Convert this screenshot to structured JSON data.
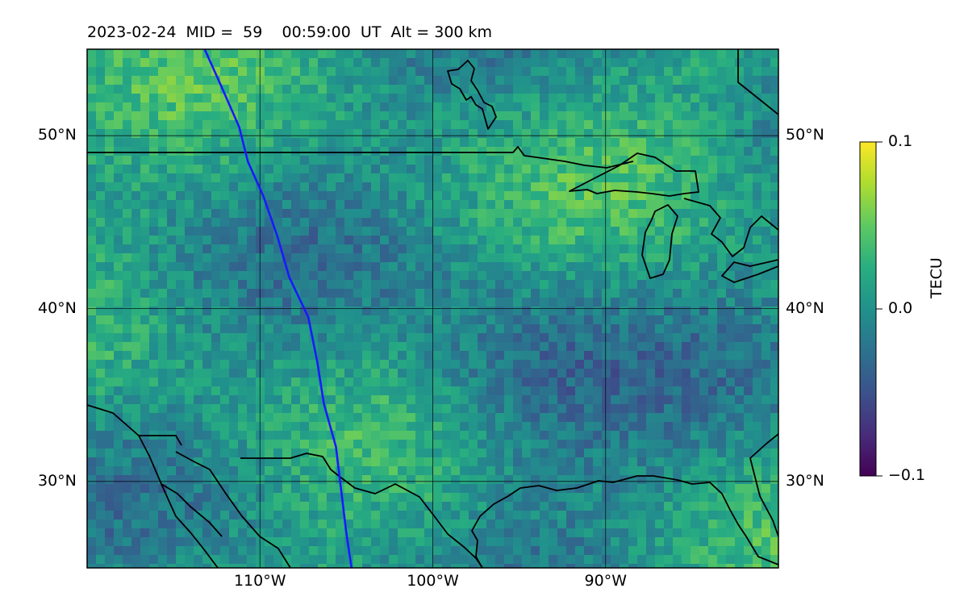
{
  "title": "2023-02-24  MID =  59    00:59:00  UT  Alt = 300 km",
  "map": {
    "lon_range": [
      -120,
      -80
    ],
    "lat_range": [
      25,
      55
    ],
    "lat_ticks": [
      {
        "value": 50,
        "label": "50°N"
      },
      {
        "value": 40,
        "label": "40°N"
      },
      {
        "value": 30,
        "label": "30°N"
      }
    ],
    "lon_ticks": [
      {
        "value": -110,
        "label": "110°W"
      },
      {
        "value": -100,
        "label": "100°W"
      },
      {
        "value": -90,
        "label": "90°W"
      }
    ],
    "grid": true,
    "track_color": "#1a1aff",
    "track": [
      [
        -113.2,
        55
      ],
      [
        -112.3,
        53
      ],
      [
        -111.2,
        50.5
      ],
      [
        -110.7,
        48.5
      ],
      [
        -109.8,
        46.5
      ],
      [
        -109.0,
        44.2
      ],
      [
        -108.3,
        41.8
      ],
      [
        -107.2,
        39.5
      ],
      [
        -106.7,
        37
      ],
      [
        -106.3,
        34.5
      ],
      [
        -105.6,
        32
      ],
      [
        -105.3,
        29.5
      ],
      [
        -105.0,
        27
      ],
      [
        -104.7,
        25
      ]
    ]
  },
  "colorbar": {
    "label": "TECU",
    "colormap": "viridis",
    "vmin": -0.1,
    "vmax": 0.1,
    "ticks": [
      {
        "value": 0.1,
        "label": "0.1"
      },
      {
        "value": 0.0,
        "label": "0.0"
      },
      {
        "value": -0.1,
        "label": "−0.1"
      }
    ]
  }
}
